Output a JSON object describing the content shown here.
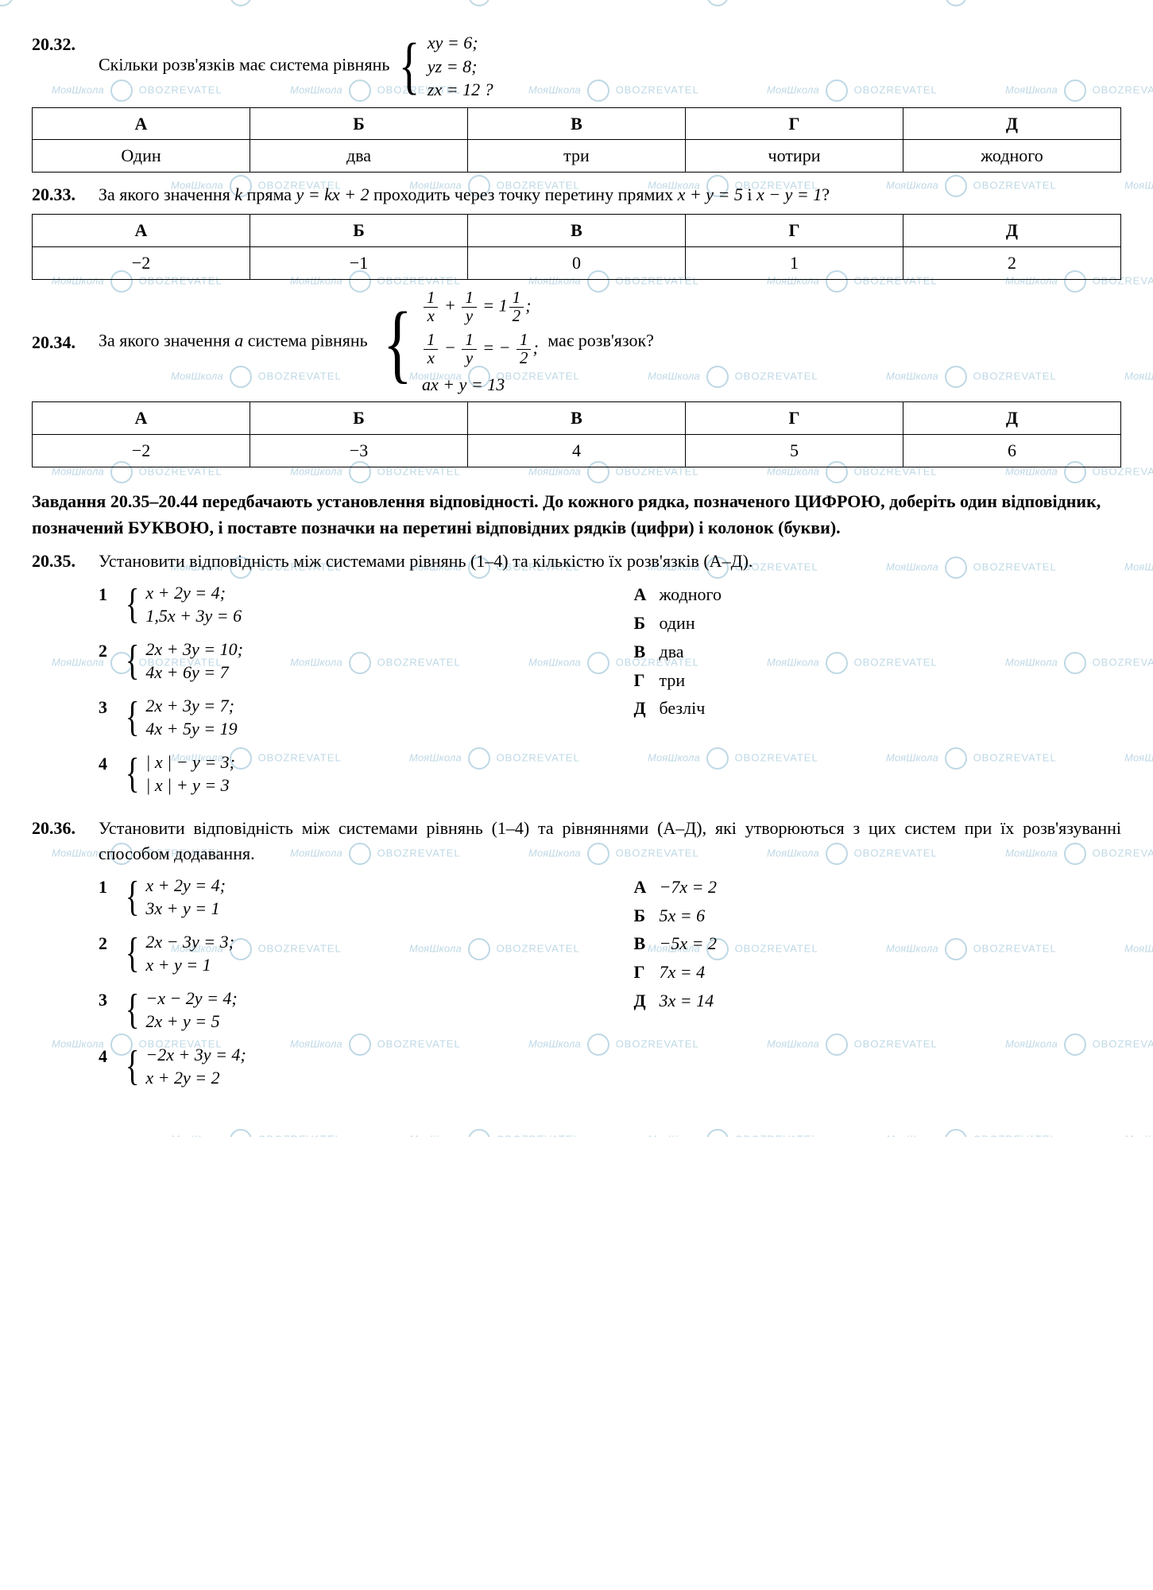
{
  "watermark": {
    "text_left": "МояШкола",
    "text_right": "OBOZREVATEL"
  },
  "p32": {
    "num": "20.32.",
    "text": "Скільки розв'язків має система рівнянь",
    "sys": [
      "xy = 6;",
      "yz = 8;",
      "zx = 12 ?"
    ],
    "headers": [
      "А",
      "Б",
      "В",
      "Г",
      "Д"
    ],
    "row": [
      "Один",
      "два",
      "три",
      "чотири",
      "жодного"
    ]
  },
  "p33": {
    "num": "20.33.",
    "text_pre": "За якого значення ",
    "k": "k",
    "text_mid1": " пряма ",
    "eq1": "y = kx + 2",
    "text_mid2": " проходить через точку перетину прямих ",
    "eq2": "x + y = 5",
    "text_mid3": " і ",
    "eq3": "x − y = 1",
    "q": "?",
    "headers": [
      "А",
      "Б",
      "В",
      "Г",
      "Д"
    ],
    "row": [
      "−2",
      "−1",
      "0",
      "1",
      "2"
    ]
  },
  "p34": {
    "num": "20.34.",
    "text_pre": "За якого значення ",
    "a": "a",
    "text_mid": " система рівнянь",
    "text_post": " має розв'язок?",
    "line3": "ax + y = 13",
    "headers": [
      "А",
      "Б",
      "В",
      "Г",
      "Д"
    ],
    "row": [
      "−2",
      "−3",
      "4",
      "5",
      "6"
    ]
  },
  "section": "Завдання 20.35–20.44 передбачають установлення відповідності. До кожного рядка, позначеного ЦИФРОЮ, доберіть один відповідник, позначений БУКВОЮ, і поставте позначки на перетині відповідних рядків (цифри) і колонок (букви).",
  "p35": {
    "num": "20.35.",
    "text": "Установити відповідність між системами рівнянь (1–4) та кількістю їх розв'язків (А–Д).",
    "items": [
      {
        "idx": "1",
        "lines": [
          "x + 2y = 4;",
          "1,5x + 3y = 6"
        ]
      },
      {
        "idx": "2",
        "lines": [
          "2x + 3y = 10;",
          "4x + 6y = 7"
        ]
      },
      {
        "idx": "3",
        "lines": [
          "2x + 3y = 7;",
          "4x + 5y = 19"
        ]
      },
      {
        "idx": "4",
        "lines": [
          "| x | − y = 3;",
          "| x | + y = 3"
        ]
      }
    ],
    "options": [
      {
        "k": "А",
        "v": "жодного"
      },
      {
        "k": "Б",
        "v": "один"
      },
      {
        "k": "В",
        "v": "два"
      },
      {
        "k": "Г",
        "v": "три"
      },
      {
        "k": "Д",
        "v": "безліч"
      }
    ]
  },
  "p36": {
    "num": "20.36.",
    "text": "Установити відповідність між системами рівнянь (1–4) та рівняннями (А–Д), які утворюються з цих систем при їх розв'язуванні способом додавання.",
    "items": [
      {
        "idx": "1",
        "lines": [
          "x + 2y = 4;",
          "3x + y = 1"
        ]
      },
      {
        "idx": "2",
        "lines": [
          "2x − 3y = 3;",
          "x + y = 1"
        ]
      },
      {
        "idx": "3",
        "lines": [
          "−x − 2y = 4;",
          "2x + y = 5"
        ]
      },
      {
        "idx": "4",
        "lines": [
          "−2x + 3y = 4;",
          "x + 2y = 2"
        ]
      }
    ],
    "options": [
      {
        "k": "А",
        "v": "−7x = 2"
      },
      {
        "k": "Б",
        "v": "5x = 6"
      },
      {
        "k": "В",
        "v": "−5x = 2"
      },
      {
        "k": "Г",
        "v": "7x = 4"
      },
      {
        "k": "Д",
        "v": "3x = 14"
      }
    ]
  }
}
